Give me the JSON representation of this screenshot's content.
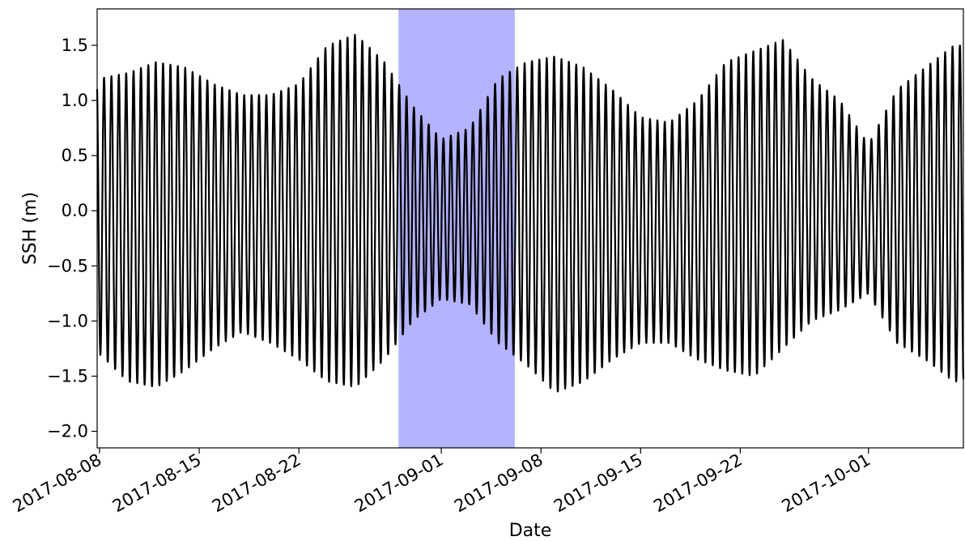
{
  "chart_data": {
    "type": "line",
    "title": "",
    "xlabel": "Date",
    "ylabel": "SSH (m)",
    "x_range": [
      "2017-08-07T20:00",
      "2017-10-07T16:00"
    ],
    "ylim": [
      -2.15,
      1.83
    ],
    "yticks": [
      1.5,
      1.0,
      0.5,
      0.0,
      -0.5,
      -1.0,
      -1.5,
      -2.0
    ],
    "ytick_labels": [
      "1.5",
      "1.0",
      "0.5",
      "0.0",
      "−0.5",
      "−1.0",
      "−1.5",
      "−2.0"
    ],
    "xticks": [
      "2017-08-08",
      "2017-08-15",
      "2017-08-22",
      "2017-09-01",
      "2017-09-08",
      "2017-09-15",
      "2017-09-22",
      "2017-10-01"
    ],
    "xtick_labels": [
      "2017-08-08",
      "2017-08-15",
      "2017-08-22",
      "2017-09-01",
      "2017-09-08",
      "2017-09-15",
      "2017-09-22",
      "2017-10-01"
    ],
    "grid": false,
    "highlight_span": {
      "start": "2017-08-29T00:00",
      "end": "2017-09-06T04:00",
      "color": "#b3b3ff"
    },
    "series": [
      {
        "color": "#000000",
        "cycles_per_day": 1.93,
        "envelope": {
          "dates": [
            "2017-08-08",
            "2017-08-10",
            "2017-08-12",
            "2017-08-14",
            "2017-08-16",
            "2017-08-18",
            "2017-08-20",
            "2017-08-22",
            "2017-08-24",
            "2017-08-26",
            "2017-08-28",
            "2017-08-30",
            "2017-09-01",
            "2017-09-03",
            "2017-09-05",
            "2017-09-07",
            "2017-09-09",
            "2017-09-11",
            "2017-09-13",
            "2017-09-15",
            "2017-09-17",
            "2017-09-19",
            "2017-09-21",
            "2017-09-23",
            "2017-09-25",
            "2017-09-27",
            "2017-09-29",
            "2017-10-01",
            "2017-10-03",
            "2017-10-05",
            "2017-10-07"
          ],
          "high": [
            1.2,
            1.25,
            1.35,
            1.3,
            1.15,
            1.05,
            1.05,
            1.15,
            1.5,
            1.6,
            1.35,
            0.95,
            0.65,
            0.75,
            1.2,
            1.35,
            1.4,
            1.3,
            1.1,
            0.85,
            0.8,
            1.0,
            1.35,
            1.45,
            1.55,
            1.2,
            1.0,
            0.6,
            1.1,
            1.3,
            1.5
          ],
          "low": [
            -1.3,
            -1.55,
            -1.6,
            -1.45,
            -1.25,
            -1.1,
            -1.2,
            -1.35,
            -1.55,
            -1.6,
            -1.35,
            -1.0,
            -0.8,
            -0.85,
            -1.2,
            -1.4,
            -1.65,
            -1.55,
            -1.35,
            -1.2,
            -1.2,
            -1.35,
            -1.45,
            -1.5,
            -1.25,
            -1.0,
            -0.9,
            -0.75,
            -1.2,
            -1.35,
            -1.55
          ]
        }
      }
    ]
  }
}
